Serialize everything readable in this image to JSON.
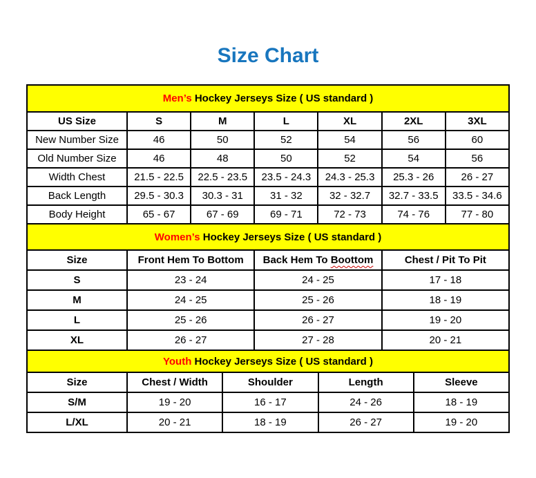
{
  "page": {
    "title": "Size Chart"
  },
  "colors": {
    "title_blue": "#1876be",
    "banner_yellow": "#ffff00",
    "accent_red": "#ff0000",
    "border_black": "#000000",
    "squiggle_red": "#cc0000"
  },
  "sections": [
    {
      "id": "men",
      "banner": {
        "highlight": "Men’s",
        "rest": " Hockey Jerseys Size ( US standard )"
      },
      "header": [
        "US Size",
        "S",
        "M",
        "L",
        "XL",
        "2XL",
        "3XL"
      ],
      "rows": [
        {
          "label": "New Number Size",
          "values": [
            "46",
            "50",
            "52",
            "54",
            "56",
            "60"
          ]
        },
        {
          "label": "Old Number Size",
          "values": [
            "46",
            "48",
            "50",
            "52",
            "54",
            "56"
          ]
        },
        {
          "label": "Width Chest",
          "values": [
            "21.5 - 22.5",
            "22.5 - 23.5",
            "23.5 - 24.3",
            "24.3 - 25.3",
            "25.3 - 26",
            "26 - 27"
          ]
        },
        {
          "label": "Back Length",
          "values": [
            "29.5 - 30.3",
            "30.3 - 31",
            "31 - 32",
            "32 - 32.7",
            "32.7 - 33.5",
            "33.5 - 34.6"
          ]
        },
        {
          "label": "Body Height",
          "values": [
            "65 - 67",
            "67 - 69",
            "69 - 71",
            "72 - 73",
            "74 - 76",
            "77 - 80"
          ]
        }
      ]
    },
    {
      "id": "women",
      "banner": {
        "highlight": "Women’s",
        "rest": " Hockey Jerseys Size ( US standard )"
      },
      "header": [
        "Size",
        "Front Hem To Bottom",
        "Back Hem To Boottom",
        "Chest / Pit To Pit"
      ],
      "misspelled_word": "Boottom",
      "rows": [
        {
          "label": "S",
          "values": [
            "23 - 24",
            "24 - 25",
            "17 - 18"
          ]
        },
        {
          "label": "M",
          "values": [
            "24 - 25",
            "25 - 26",
            "18 - 19"
          ]
        },
        {
          "label": "L",
          "values": [
            "25 - 26",
            "26 - 27",
            "19 - 20"
          ]
        },
        {
          "label": "XL",
          "values": [
            "26 - 27",
            "27 - 28",
            "20 - 21"
          ]
        }
      ]
    },
    {
      "id": "youth",
      "banner": {
        "highlight": "Youth",
        "rest": " Hockey Jerseys Size ( US standard )"
      },
      "header": [
        "Size",
        "Chest / Width",
        "Shoulder",
        "Length",
        "Sleeve"
      ],
      "rows": [
        {
          "label": "S/M",
          "values": [
            "19 - 20",
            "16 - 17",
            "24 - 26",
            "18 - 19"
          ]
        },
        {
          "label": "L/XL",
          "values": [
            "20 - 21",
            "18 - 19",
            "26 - 27",
            "19 - 20"
          ]
        }
      ]
    }
  ]
}
